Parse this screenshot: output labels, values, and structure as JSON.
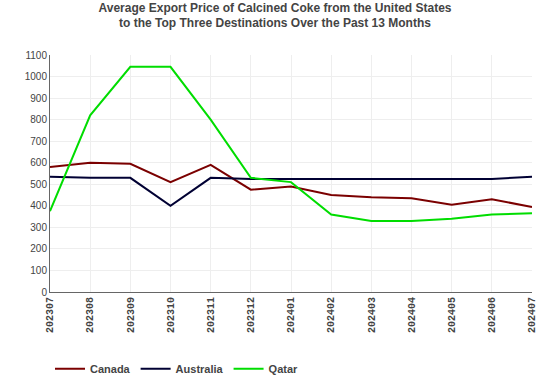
{
  "chart_data": {
    "type": "line",
    "title": "Average Export Price of Calcined Coke from the United States\nto the Top Three Destinations Over the Past 13 Months",
    "categories": [
      "202307",
      "202308",
      "202309",
      "202310",
      "202311",
      "202312",
      "202401",
      "202402",
      "202403",
      "202404",
      "202405",
      "202406",
      "202407"
    ],
    "series": [
      {
        "name": "Canada",
        "color": "#7B0000",
        "values": [
          580,
          600,
          595,
          510,
          590,
          475,
          490,
          450,
          440,
          435,
          405,
          430,
          395
        ]
      },
      {
        "name": "Australia",
        "color": "#000033",
        "values": [
          535,
          530,
          530,
          400,
          530,
          525,
          525,
          525,
          525,
          525,
          525,
          525,
          535
        ]
      },
      {
        "name": "Qatar",
        "color": "#00DD00",
        "values": [
          375,
          820,
          1045,
          1045,
          800,
          530,
          510,
          360,
          330,
          330,
          340,
          360,
          365
        ]
      }
    ],
    "ylim": [
      0,
      1100
    ],
    "yticks": [
      0,
      100,
      200,
      300,
      400,
      500,
      600,
      700,
      800,
      900,
      1000,
      1100
    ],
    "grid": true,
    "legend": "bottom"
  }
}
